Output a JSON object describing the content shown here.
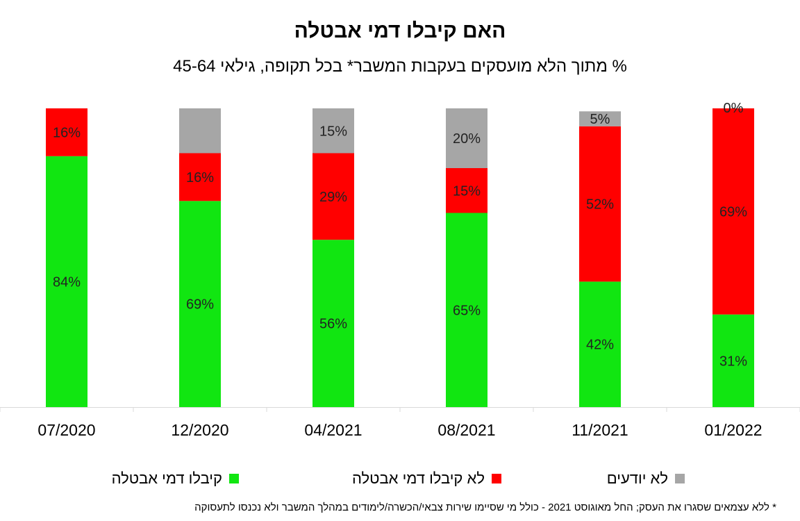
{
  "title": "האם קיבלו דמי אבטלה",
  "subtitle": "% מתוך הלא מועסקים בעקבות המשבר* בכל תקופה, גילאי 45-64",
  "footnote": "* ללא עצמאים שסגרו את העסק; החל מאוגוסט 2021 - כולל מי שסיימו שירות צבאי/הכשרה/לימודים במהלך המשבר ולא נכנסו לתעסוקה",
  "colors": {
    "received": "#11e611",
    "not_received": "#ff0000",
    "unknown": "#a6a6a6"
  },
  "chart_data": {
    "type": "bar",
    "stacked": true,
    "normalized": "percent",
    "categories": [
      "07/2020",
      "12/2020",
      "04/2021",
      "08/2021",
      "11/2021",
      "01/2022"
    ],
    "series": [
      {
        "key": "received",
        "name": "קיבלו דמי אבטלה",
        "values": [
          84,
          69,
          56,
          65,
          42,
          31
        ]
      },
      {
        "key": "not_received",
        "name": "לא קיבלו דמי אבטלה",
        "values": [
          16,
          16,
          29,
          15,
          52,
          69
        ]
      },
      {
        "key": "unknown",
        "name": "לא יודעים",
        "values": [
          0,
          15,
          15,
          20,
          5,
          0
        ]
      }
    ],
    "data_labels": {
      "received": [
        "84%",
        "69%",
        "56%",
        "65%",
        "42%",
        "31%"
      ],
      "not_received": [
        "16%",
        "16%",
        "29%",
        "15%",
        "52%",
        "69%"
      ],
      "unknown": [
        "",
        "",
        "15%",
        "20%",
        "5%",
        "0%"
      ]
    },
    "ylim": [
      0,
      100
    ],
    "grid": false,
    "legend_position": "bottom"
  }
}
